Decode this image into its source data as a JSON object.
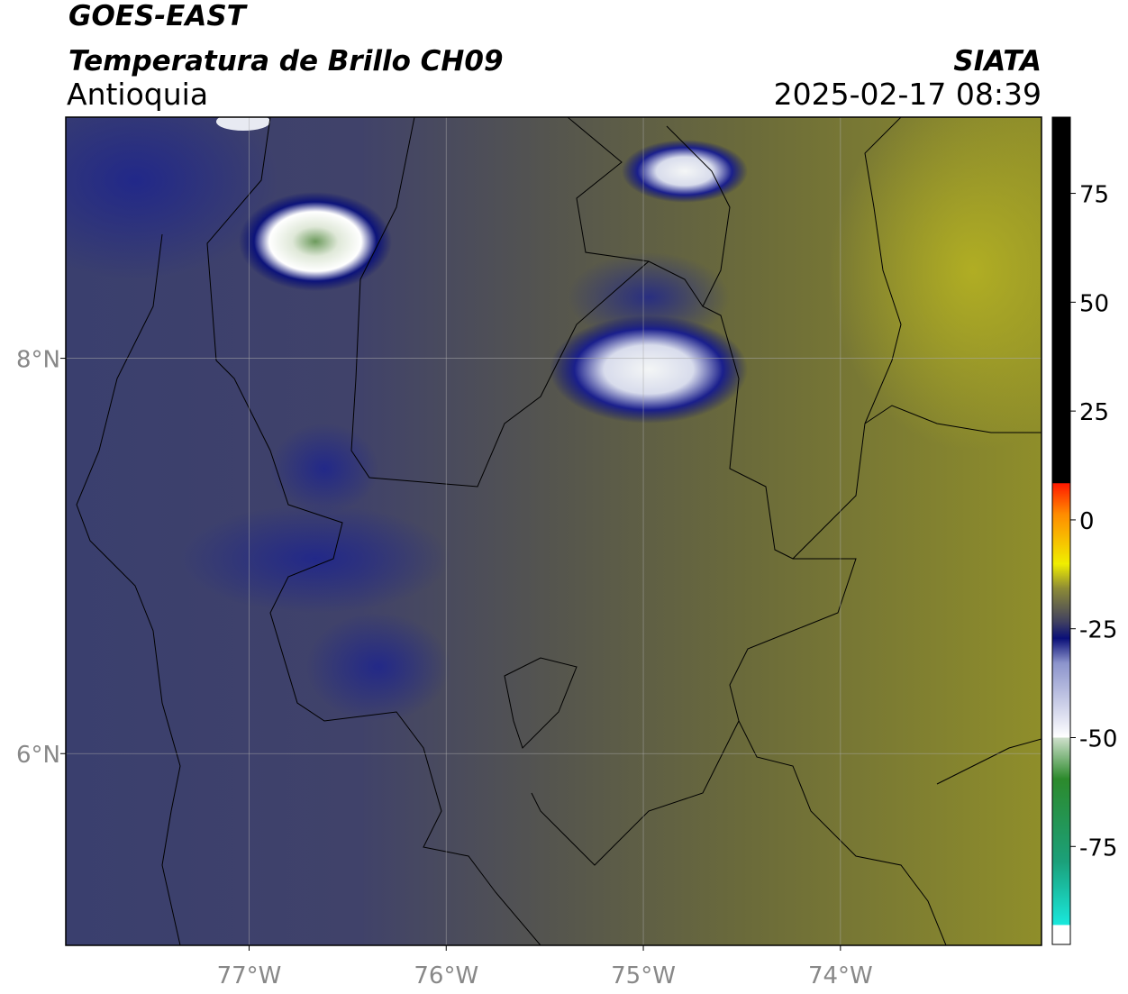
{
  "header": {
    "title": "GOES-EAST",
    "subtitle": "Temperatura de Brillo CH09",
    "region": "Antioquia",
    "source": "SIATA",
    "timestamp": "2025-02-17 08:39"
  },
  "map": {
    "xlim": [
      -77.93,
      -72.98
    ],
    "ylim": [
      5.03,
      9.22
    ],
    "xticks": [
      {
        "value": -77,
        "label": "77°W"
      },
      {
        "value": -76,
        "label": "76°W"
      },
      {
        "value": -75,
        "label": "75°W"
      },
      {
        "value": -74,
        "label": "74°W"
      }
    ],
    "yticks": [
      {
        "value": 8,
        "label": "8°N"
      },
      {
        "value": 6,
        "label": "6°N"
      }
    ],
    "grid": true
  },
  "colorbar": {
    "clim": [
      -97.5,
      92.5
    ],
    "ticks": [
      75,
      50,
      25,
      0,
      -25,
      -50,
      -75
    ]
  }
}
